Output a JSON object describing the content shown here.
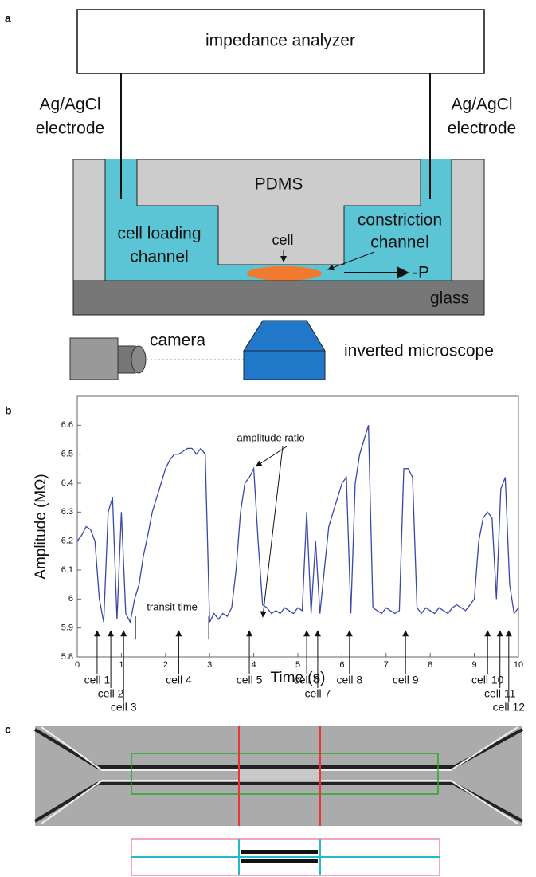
{
  "panel_a": {
    "label": "a",
    "analyzer": "impedance analyzer",
    "electrode_left": [
      "Ag/AgCl",
      "electrode"
    ],
    "electrode_right": [
      "Ag/AgCl",
      "electrode"
    ],
    "pdms": "PDMS",
    "loading_channel": [
      "cell loading",
      "channel"
    ],
    "cell": "cell",
    "constriction_channel": [
      "constriction",
      "channel"
    ],
    "pressure": "-P",
    "glass": "glass",
    "camera": "camera",
    "microscope": "inverted microscope"
  },
  "chart_data": {
    "type": "line",
    "panel_label": "b",
    "xlabel": "Time (s)",
    "ylabel": "Amplitude (MΩ)",
    "color": "#3a48a8",
    "x": [
      0,
      0.1,
      0.2,
      0.3,
      0.4,
      0.5,
      0.6,
      0.7,
      0.8,
      0.9,
      1,
      1.1,
      1.2,
      1.3,
      1.4,
      1.5,
      1.6,
      1.7,
      1.8,
      1.9,
      2,
      2.1,
      2.2,
      2.3,
      2.4,
      2.5,
      2.6,
      2.7,
      2.8,
      2.9,
      3,
      3.1,
      3.2,
      3.3,
      3.4,
      3.5,
      3.6,
      3.7,
      3.8,
      3.9,
      4,
      4.1,
      4.2,
      4.3,
      4.4,
      4.5,
      4.6,
      4.7,
      4.8,
      4.9,
      5,
      5.1,
      5.2,
      5.3,
      5.4,
      5.5,
      5.6,
      5.7,
      5.8,
      5.9,
      6,
      6.1,
      6.2,
      6.3,
      6.4,
      6.5,
      6.6,
      6.7,
      6.8,
      6.9,
      7,
      7.1,
      7.2,
      7.3,
      7.4,
      7.5,
      7.6,
      7.7,
      7.8,
      7.9,
      8,
      8.1,
      8.2,
      8.3,
      8.4,
      8.5,
      8.6,
      8.7,
      8.8,
      8.9,
      9,
      9.1,
      9.2,
      9.3,
      9.4,
      9.5,
      9.6,
      9.7,
      9.8,
      9.9,
      10
    ],
    "values": [
      6.2,
      6.22,
      6.25,
      6.24,
      6.2,
      6.0,
      5.92,
      6.3,
      6.35,
      5.93,
      6.3,
      5.95,
      5.92,
      6.0,
      6.05,
      6.15,
      6.22,
      6.3,
      6.35,
      6.4,
      6.45,
      6.48,
      6.5,
      6.5,
      6.51,
      6.52,
      6.52,
      6.5,
      6.52,
      6.5,
      5.92,
      5.95,
      5.93,
      5.95,
      5.94,
      5.97,
      6.1,
      6.3,
      6.4,
      6.42,
      6.45,
      6.2,
      5.98,
      5.97,
      5.95,
      5.96,
      5.95,
      5.97,
      5.96,
      5.95,
      5.97,
      5.96,
      6.3,
      5.95,
      6.2,
      5.95,
      6.1,
      6.25,
      6.3,
      6.35,
      6.4,
      6.42,
      5.95,
      6.4,
      6.5,
      6.55,
      6.6,
      5.97,
      5.96,
      5.95,
      5.97,
      5.96,
      5.95,
      5.96,
      6.45,
      6.45,
      6.42,
      5.97,
      5.95,
      5.97,
      5.96,
      5.95,
      5.97,
      5.96,
      5.95,
      5.97,
      5.98,
      5.97,
      5.96,
      5.98,
      6.0,
      6.2,
      6.28,
      6.3,
      6.28,
      6.0,
      6.38,
      6.42,
      6.05,
      5.95,
      5.97
    ],
    "xlim": [
      0,
      10
    ],
    "xticks": [
      0,
      1,
      2,
      3,
      4,
      5,
      6,
      7,
      8,
      9,
      10
    ],
    "ylim": [
      5.8,
      6.7
    ],
    "yticks": [
      5.8,
      5.9,
      6,
      6.1,
      6.2,
      6.3,
      6.4,
      6.5,
      6.6
    ],
    "amplitude_annotation": {
      "text": "amplitude ratio",
      "targets": [
        {
          "x": 4.0,
          "y": 6.45
        },
        {
          "x": 4.15,
          "y": 5.93
        }
      ]
    },
    "transit_annotation": {
      "text": "transit time",
      "x": [
        1.32,
        2.98
      ]
    },
    "cells": [
      {
        "label": "cell 1",
        "x": 0.45
      },
      {
        "label": "cell 2",
        "x": 0.76
      },
      {
        "label": "cell 3",
        "x": 1.05
      },
      {
        "label": "cell 4",
        "x": 2.3
      },
      {
        "label": "cell 5",
        "x": 3.9
      },
      {
        "label": "cell 6",
        "x": 5.2
      },
      {
        "label": "cell 7",
        "x": 5.45
      },
      {
        "label": "cell 8",
        "x": 6.17
      },
      {
        "label": "cell 9",
        "x": 7.44
      },
      {
        "label": "cell 10",
        "x": 9.3
      },
      {
        "label": "cell 11",
        "x": 9.58
      },
      {
        "label": "cell 12",
        "x": 9.78
      }
    ]
  },
  "panel_c": {
    "label": "c"
  }
}
